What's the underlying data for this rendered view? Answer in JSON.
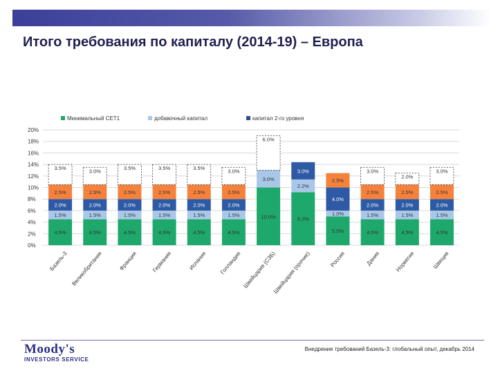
{
  "title": "Итого требования по капиталу (2014-19) – Европа",
  "footer": {
    "logo_name": "Moody's",
    "logo_sub": "INVESTORS SERVICE",
    "note": "Внедрение требований Базель-3: глобальный опыт, декабрь 2014"
  },
  "colors": {
    "title_bar": "#3c3f9a",
    "cet1": "#1fa86c",
    "additional": "#a9c8e8",
    "buffer_blue": "#2e5aa5",
    "buffer_orange": "#f5823c",
    "tier2": "#2e4f8f"
  },
  "chart_data": {
    "type": "bar",
    "stacked": true,
    "categories": [
      "Базель-3",
      "Великобритания",
      "Франция",
      "Германия",
      "Испания",
      "Голландия",
      "Швейцария (СЗБ)",
      "Швейцария (прочие)",
      "Россия",
      "Дания",
      "Норвегия",
      "Швеция"
    ],
    "series": [
      {
        "name": "Минимальный CET1",
        "color": "#1fa86c",
        "values": [
          4.5,
          4.5,
          4.5,
          4.5,
          4.5,
          4.5,
          10.0,
          9.2,
          5.0,
          4.5,
          4.5,
          4.5
        ],
        "labels": [
          "4.5%",
          "4.5%",
          "4.5%",
          "4.5%",
          "4.5%",
          "4.5%",
          "10.0%",
          "9.2%",
          "5.0%",
          "4.5%",
          "4.5%",
          "4.5%"
        ]
      },
      {
        "name": "добавочный капитал",
        "color": "#a9c8e8",
        "values": [
          1.5,
          1.5,
          1.5,
          1.5,
          1.5,
          1.5,
          3.0,
          2.2,
          1.0,
          1.5,
          1.5,
          1.5
        ],
        "labels": [
          "1.5%",
          "1.5%",
          "1.5%",
          "1.5%",
          "1.5%",
          "1.5%",
          "3.0%",
          "2.2%",
          "1.0%",
          "1.5%",
          "1.5%",
          "1.5%"
        ]
      },
      {
        "name": "",
        "color": "#2e5aa5",
        "values": [
          2.0,
          2.0,
          2.0,
          2.0,
          2.0,
          2.0,
          0,
          3.0,
          4.0,
          2.0,
          2.0,
          2.0
        ],
        "labels": [
          "2.0%",
          "2.0%",
          "2.0%",
          "2.0%",
          "2.0%",
          "2.0%",
          "",
          "3.0%",
          "4.0%",
          "2.0%",
          "2.0%",
          "2.0%"
        ]
      },
      {
        "name": "",
        "color": "#f5823c",
        "values": [
          2.5,
          2.5,
          2.5,
          2.5,
          2.5,
          2.5,
          0,
          0,
          2.5,
          2.5,
          2.5,
          2.5
        ],
        "labels": [
          "2.5%",
          "2.5%",
          "2.5%",
          "2.5%",
          "2.5%",
          "2.5%",
          "",
          "",
          "2.5%",
          "2.5%",
          "2.5%",
          "2.5%"
        ]
      },
      {
        "name": "капитал 2-го уровня",
        "color": "#2e4f8f",
        "dashed": true,
        "values": [
          3.5,
          3.0,
          3.5,
          3.5,
          3.5,
          3.0,
          6.0,
          0,
          0,
          3.0,
          2.0,
          3.0
        ],
        "labels": [
          "3.5%",
          "3.0%",
          "3.5%",
          "3.5%",
          "3.5%",
          "3.0%",
          "6.0%",
          "",
          "",
          "3.0%",
          "2.0%",
          "3.0%"
        ]
      }
    ],
    "legend": [
      "Минимальный CET1",
      "добавочный капитал",
      "капитал 2-го уровня"
    ],
    "legend_colors": [
      "#1fa86c",
      "#a9c8e8",
      "#2e4f8f"
    ],
    "legend_position": "top",
    "ylim": [
      0,
      20
    ],
    "yticks": [
      "0%",
      "2%",
      "4%",
      "6%",
      "8%",
      "10%",
      "12%",
      "14%",
      "16%",
      "18%",
      "20%"
    ],
    "grid": true
  }
}
